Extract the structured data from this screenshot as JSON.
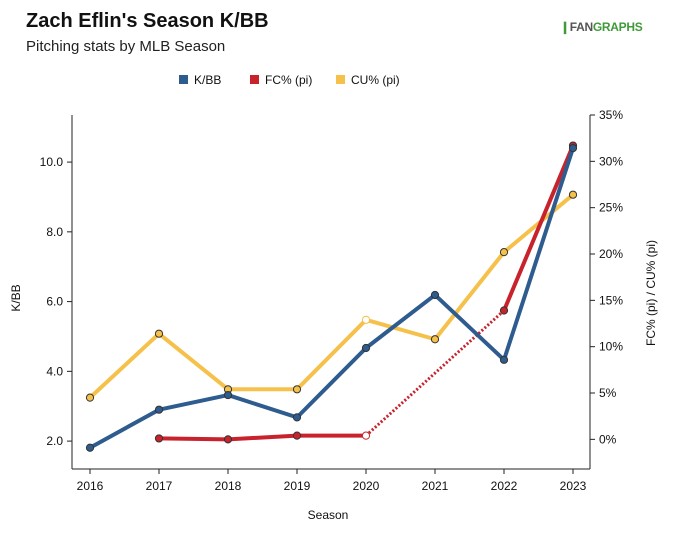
{
  "title": "Zach Eflin's Season K/BB",
  "subtitle": "Pitching stats by MLB Season",
  "logo": {
    "mark": "❙",
    "fan": "FAN",
    "graphs": "GRAPHS"
  },
  "colors": {
    "kbb": "#2f5c8f",
    "fc": "#c8232c",
    "cu": "#f5c14a",
    "axis": "#222222"
  },
  "chart_data": {
    "type": "line",
    "xlabel": "Season",
    "ylabel_left": "K/BB",
    "ylabel_right": "FC% (pi) / CU% (pi)",
    "x": [
      "2016",
      "2017",
      "2018",
      "2019",
      "2020",
      "2021",
      "2022",
      "2023"
    ],
    "left_axis": {
      "min": 1.2,
      "max": 11.35,
      "ticks": [
        2.0,
        4.0,
        6.0,
        8.0,
        10.0
      ],
      "tick_labels": [
        "2.0",
        "4.0",
        "6.0",
        "8.0",
        "10.0"
      ]
    },
    "right_axis": {
      "min": -3.2,
      "max": 35,
      "ticks": [
        0,
        5,
        10,
        15,
        20,
        25,
        30,
        35
      ],
      "tick_labels": [
        "0%",
        "5%",
        "10%",
        "15%",
        "20%",
        "25%",
        "30%",
        "35%"
      ]
    },
    "legend": [
      "K/BB",
      "FC% (pi)",
      "CU% (pi)"
    ],
    "legend_position": "top",
    "series": [
      {
        "name": "K/BB",
        "axis": "left",
        "values": [
          1.81,
          2.9,
          3.32,
          2.68,
          4.67,
          6.19,
          4.33,
          10.4
        ]
      },
      {
        "name": "FC% (pi)",
        "axis": "right",
        "values": [
          null,
          0.1,
          0.0,
          0.4,
          0.4,
          null,
          13.9,
          31.7
        ],
        "gap_segments": [
          [
            4,
            6
          ]
        ]
      },
      {
        "name": "CU% (pi)",
        "axis": "right",
        "values": [
          4.5,
          11.4,
          5.4,
          5.4,
          12.9,
          10.8,
          20.2,
          26.4
        ]
      }
    ]
  }
}
